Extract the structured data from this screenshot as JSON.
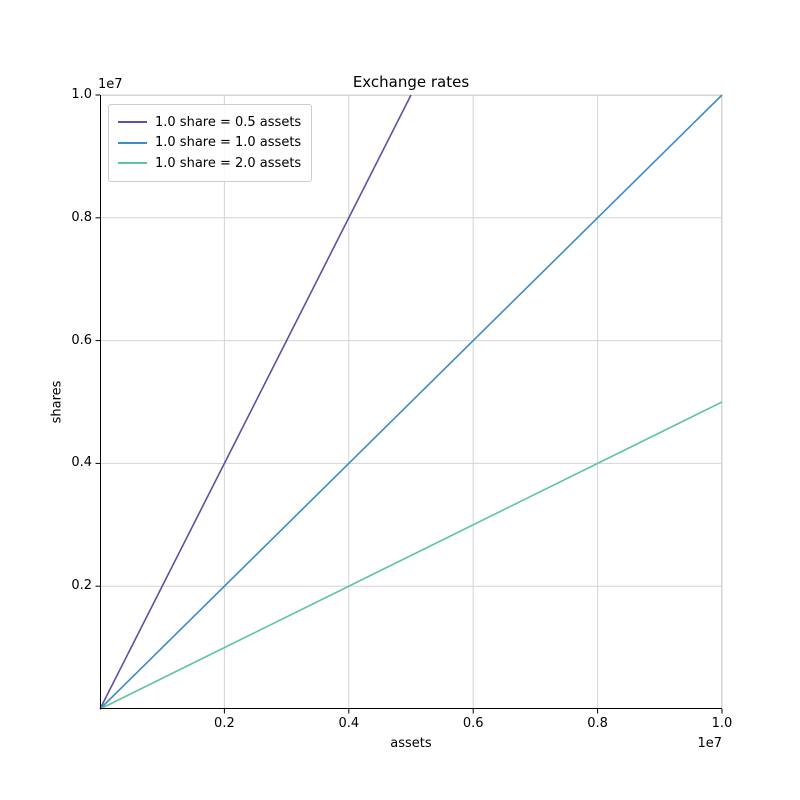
{
  "chart_data": {
    "type": "line",
    "title": "Exchange rates",
    "xlabel": "assets",
    "ylabel": "shares",
    "x_offset_text": "1e7",
    "y_offset_text": "1e7",
    "xlim": [
      0,
      10000000
    ],
    "ylim": [
      0,
      10000000
    ],
    "x_ticks": [
      2000000,
      4000000,
      6000000,
      8000000,
      10000000
    ],
    "x_tick_labels": [
      "0.2",
      "0.4",
      "0.6",
      "0.8",
      "1.0"
    ],
    "y_ticks": [
      2000000,
      4000000,
      6000000,
      8000000,
      10000000
    ],
    "y_tick_labels": [
      "0.2",
      "0.4",
      "0.6",
      "0.8",
      "1.0"
    ],
    "grid": true,
    "legend_position": "upper left",
    "series": [
      {
        "name": "1.0 share = 0.5 assets",
        "color": "#5a52a3",
        "x": [
          0,
          5000000
        ],
        "y": [
          0,
          10000000
        ]
      },
      {
        "name": "1.0 share = 1.0 assets",
        "color": "#3d8cc4",
        "x": [
          0,
          10000000
        ],
        "y": [
          0,
          10000000
        ]
      },
      {
        "name": "1.0 share = 2.0 assets",
        "color": "#5fc69c",
        "x": [
          0,
          10000000
        ],
        "y": [
          0,
          5000000
        ]
      }
    ]
  },
  "style": {
    "grid_color": "#d4d4d4",
    "spine_color": "#000000",
    "light_spine_color": "#d4d4d4",
    "tick_color": "#000000",
    "legend_border_color": "#cccccc",
    "background": "#ffffff",
    "text_color": "#000000"
  }
}
